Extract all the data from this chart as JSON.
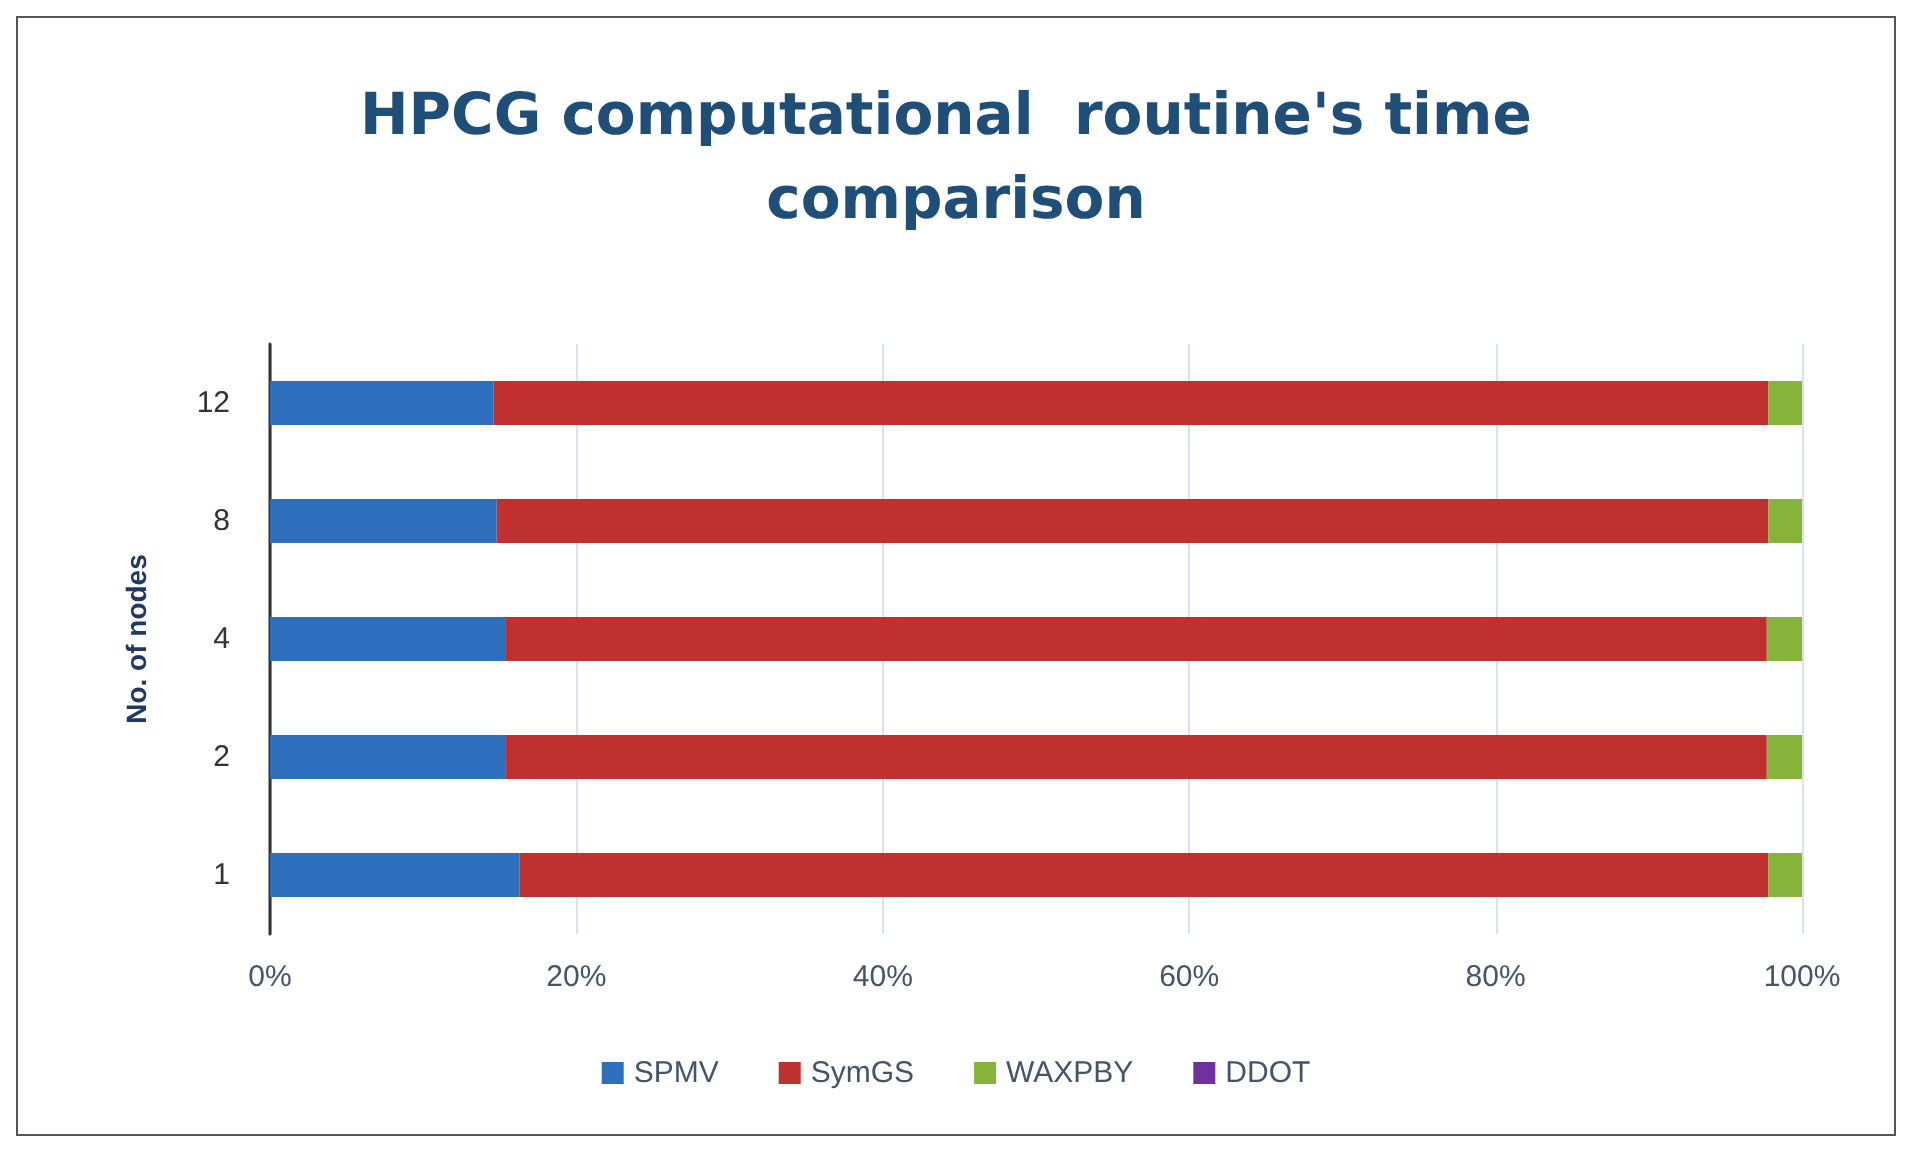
{
  "chart_data": {
    "type": "bar",
    "orientation": "horizontal",
    "stacked": true,
    "title": "HPCG computational  routine's time comparison",
    "ylabel": "No. of nodes",
    "categories": [
      "12",
      "8",
      "4",
      "2",
      "1"
    ],
    "series": [
      {
        "name": "SPMV",
        "color": "#2e6fbd",
        "values": [
          14.6,
          14.8,
          15.4,
          15.4,
          16.3
        ]
      },
      {
        "name": "SymGS",
        "color": "#c0302f",
        "values": [
          83.2,
          83.0,
          82.3,
          82.3,
          81.5
        ]
      },
      {
        "name": "WAXPBY",
        "color": "#86b43a",
        "values": [
          2.2,
          2.2,
          2.3,
          2.3,
          2.2
        ]
      },
      {
        "name": "DDOT",
        "color": "#7030a0",
        "values": [
          0,
          0,
          0,
          0,
          0
        ]
      }
    ],
    "xlim": [
      0,
      100
    ],
    "xticks": [
      {
        "value": 0,
        "label": "0%"
      },
      {
        "value": 20,
        "label": "20%"
      },
      {
        "value": 40,
        "label": "40%"
      },
      {
        "value": 60,
        "label": "60%"
      },
      {
        "value": 80,
        "label": "80%"
      },
      {
        "value": 100,
        "label": "100%"
      }
    ],
    "grid": "x",
    "legend": "bottom"
  }
}
